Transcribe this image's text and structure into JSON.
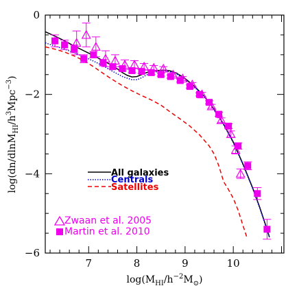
{
  "chart_data": {
    "type": "line",
    "title": "",
    "xlabel": "log(M_HI/h⁻²M⊙)",
    "ylabel": "log(dn/dlnM_HI/h³Mpc⁻³)",
    "xlabel_parts": {
      "pre": "log(M",
      "sub": "HI",
      "mid": "/h",
      "sup": "−2",
      "post": "M",
      "sub2": "⊙",
      "end": ")"
    },
    "ylabel_parts": {
      "pre": "log(dn/dlnM",
      "sub": "HI",
      "mid": "/h",
      "sup": "3",
      "post": "Mpc",
      "sup2": "−3",
      "end": ")"
    },
    "xlim": [
      6.1,
      11.05
    ],
    "ylim": [
      -6,
      0
    ],
    "x_ticks": [
      7,
      8,
      9,
      10
    ],
    "x_tick_labels": [
      "7",
      "8",
      "9",
      "10"
    ],
    "y_ticks": [
      -6,
      -4,
      -2,
      0
    ],
    "y_tick_labels": [
      "−6",
      "−4",
      "−2",
      "0"
    ],
    "grid": false,
    "legend_models_position": "lower-left",
    "legend_obs_position": "bottom-left",
    "series": [
      {
        "name": "All galaxies",
        "color": "#000000",
        "style": "solid",
        "points": [
          [
            6.1,
            -0.42
          ],
          [
            6.3,
            -0.53
          ],
          [
            6.5,
            -0.65
          ],
          [
            6.7,
            -0.78
          ],
          [
            6.9,
            -0.9
          ],
          [
            7.1,
            -1.02
          ],
          [
            7.3,
            -1.15
          ],
          [
            7.5,
            -1.28
          ],
          [
            7.6,
            -1.36
          ],
          [
            7.7,
            -1.45
          ],
          [
            7.8,
            -1.52
          ],
          [
            7.9,
            -1.56
          ],
          [
            8.0,
            -1.55
          ],
          [
            8.1,
            -1.5
          ],
          [
            8.2,
            -1.45
          ],
          [
            8.3,
            -1.42
          ],
          [
            8.4,
            -1.4
          ],
          [
            8.5,
            -1.39
          ],
          [
            8.6,
            -1.39
          ],
          [
            8.7,
            -1.41
          ],
          [
            8.8,
            -1.45
          ],
          [
            8.9,
            -1.52
          ],
          [
            9.0,
            -1.6
          ],
          [
            9.2,
            -1.8
          ],
          [
            9.4,
            -2.05
          ],
          [
            9.6,
            -2.37
          ],
          [
            9.8,
            -2.75
          ],
          [
            10.0,
            -3.2
          ],
          [
            10.2,
            -3.75
          ],
          [
            10.4,
            -4.35
          ],
          [
            10.55,
            -4.85
          ],
          [
            10.7,
            -5.4
          ],
          [
            10.75,
            -5.6
          ]
        ]
      },
      {
        "name": "Centrals",
        "color": "#0000cc",
        "style": "dotted",
        "points": [
          [
            6.1,
            -0.7
          ],
          [
            6.3,
            -0.78
          ],
          [
            6.5,
            -0.86
          ],
          [
            6.7,
            -0.95
          ],
          [
            6.9,
            -1.05
          ],
          [
            7.1,
            -1.16
          ],
          [
            7.3,
            -1.28
          ],
          [
            7.5,
            -1.42
          ],
          [
            7.7,
            -1.55
          ],
          [
            7.9,
            -1.63
          ],
          [
            8.0,
            -1.63
          ],
          [
            8.1,
            -1.58
          ],
          [
            8.2,
            -1.51
          ],
          [
            8.3,
            -1.46
          ],
          [
            8.4,
            -1.43
          ],
          [
            8.5,
            -1.41
          ],
          [
            8.6,
            -1.41
          ],
          [
            8.7,
            -1.43
          ],
          [
            8.8,
            -1.47
          ],
          [
            8.9,
            -1.54
          ],
          [
            9.0,
            -1.62
          ],
          [
            9.2,
            -1.82
          ],
          [
            9.4,
            -2.07
          ],
          [
            9.6,
            -2.39
          ],
          [
            9.8,
            -2.77
          ],
          [
            10.0,
            -3.22
          ],
          [
            10.2,
            -3.77
          ],
          [
            10.4,
            -4.37
          ],
          [
            10.55,
            -4.87
          ],
          [
            10.7,
            -5.42
          ],
          [
            10.75,
            -5.6
          ]
        ]
      },
      {
        "name": "Satellites",
        "color": "#ee0000",
        "style": "dashed",
        "points": [
          [
            6.1,
            -0.8
          ],
          [
            6.3,
            -0.86
          ],
          [
            6.5,
            -0.93
          ],
          [
            6.7,
            -1.03
          ],
          [
            6.9,
            -1.15
          ],
          [
            7.1,
            -1.3
          ],
          [
            7.3,
            -1.47
          ],
          [
            7.5,
            -1.63
          ],
          [
            7.7,
            -1.78
          ],
          [
            7.9,
            -1.91
          ],
          [
            8.1,
            -2.03
          ],
          [
            8.3,
            -2.14
          ],
          [
            8.5,
            -2.27
          ],
          [
            8.7,
            -2.45
          ],
          [
            8.9,
            -2.62
          ],
          [
            9.1,
            -2.8
          ],
          [
            9.3,
            -3.02
          ],
          [
            9.5,
            -3.3
          ],
          [
            9.6,
            -3.5
          ],
          [
            9.7,
            -3.8
          ],
          [
            9.8,
            -4.2
          ],
          [
            9.9,
            -4.4
          ],
          [
            10.0,
            -4.62
          ],
          [
            10.1,
            -4.92
          ],
          [
            10.2,
            -5.3
          ],
          [
            10.28,
            -5.6
          ]
        ]
      }
    ],
    "observations": [
      {
        "name": "Zwaan et al. 2005",
        "marker": "open-triangle",
        "color": "#ee00ee",
        "points": [
          {
            "x": 6.75,
            "y": -0.7,
            "err": 0.3
          },
          {
            "x": 6.95,
            "y": -0.5,
            "err": 0.3
          },
          {
            "x": 7.15,
            "y": -0.8,
            "err": 0.25
          },
          {
            "x": 7.35,
            "y": -1.1,
            "err": 0.2
          },
          {
            "x": 7.55,
            "y": -1.15,
            "err": 0.15
          },
          {
            "x": 7.75,
            "y": -1.25,
            "err": 0.12
          },
          {
            "x": 7.95,
            "y": -1.25,
            "err": 0.1
          },
          {
            "x": 8.15,
            "y": -1.3,
            "err": 0.08
          },
          {
            "x": 8.35,
            "y": -1.33,
            "err": 0.06
          },
          {
            "x": 8.55,
            "y": -1.35,
            "err": 0.05
          },
          {
            "x": 8.75,
            "y": -1.5,
            "err": 0.05
          },
          {
            "x": 8.95,
            "y": -1.6,
            "err": 0.05
          },
          {
            "x": 9.15,
            "y": -1.75,
            "err": 0.05
          },
          {
            "x": 9.35,
            "y": -2.0,
            "err": 0.05
          },
          {
            "x": 9.55,
            "y": -2.3,
            "err": 0.05
          },
          {
            "x": 9.75,
            "y": -2.65,
            "err": 0.06
          },
          {
            "x": 9.95,
            "y": -3.0,
            "err": 0.08
          },
          {
            "x": 10.05,
            "y": -3.4,
            "err": 0.1
          },
          {
            "x": 10.15,
            "y": -4.0,
            "err": 0.12
          }
        ]
      },
      {
        "name": "Martin et al. 2010",
        "marker": "filled-square",
        "color": "#ee00ee",
        "points": [
          {
            "x": 6.3,
            "y": -0.65,
            "err": 0.15
          },
          {
            "x": 6.5,
            "y": -0.75,
            "err": 0.12
          },
          {
            "x": 6.7,
            "y": -0.85,
            "err": 0.1
          },
          {
            "x": 6.9,
            "y": -1.1,
            "err": 0.1
          },
          {
            "x": 7.1,
            "y": -1.0,
            "err": 0.08
          },
          {
            "x": 7.3,
            "y": -1.2,
            "err": 0.08
          },
          {
            "x": 7.5,
            "y": -1.3,
            "err": 0.06
          },
          {
            "x": 7.7,
            "y": -1.35,
            "err": 0.06
          },
          {
            "x": 7.9,
            "y": -1.4,
            "err": 0.05
          },
          {
            "x": 8.1,
            "y": -1.42,
            "err": 0.05
          },
          {
            "x": 8.3,
            "y": -1.45,
            "err": 0.05
          },
          {
            "x": 8.5,
            "y": -1.5,
            "err": 0.04
          },
          {
            "x": 8.7,
            "y": -1.55,
            "err": 0.04
          },
          {
            "x": 8.9,
            "y": -1.65,
            "err": 0.04
          },
          {
            "x": 9.1,
            "y": -1.8,
            "err": 0.04
          },
          {
            "x": 9.3,
            "y": -2.0,
            "err": 0.04
          },
          {
            "x": 9.5,
            "y": -2.2,
            "err": 0.04
          },
          {
            "x": 9.7,
            "y": -2.5,
            "err": 0.05
          },
          {
            "x": 9.9,
            "y": -2.8,
            "err": 0.06
          },
          {
            "x": 10.1,
            "y": -3.3,
            "err": 0.08
          },
          {
            "x": 10.3,
            "y": -3.8,
            "err": 0.1
          },
          {
            "x": 10.5,
            "y": -4.5,
            "err": 0.15
          },
          {
            "x": 10.7,
            "y": -5.4,
            "err": 0.25
          }
        ]
      }
    ]
  }
}
